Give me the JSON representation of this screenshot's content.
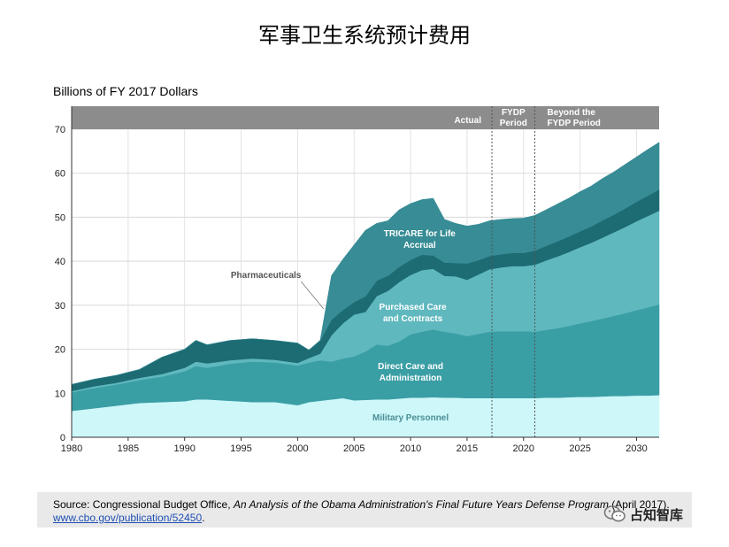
{
  "page": {
    "title": "军事卫生系统预计费用"
  },
  "source": {
    "prefix": "Source: Congressional Budget Office, ",
    "title": "An Analysis of the Obama Administration's Final Future Years Defense Program",
    "suffix": " (April 2017).",
    "url": "www.cbo.gov/publication/52450",
    "url_suffix": "."
  },
  "watermark": {
    "text": "占知智库",
    "icon": "wechat-icon"
  },
  "colors": {
    "military_personnel": "#cdf7f9",
    "direct_care": "#3a9ea5",
    "purchased_care": "#5fb8be",
    "pharmaceuticals": "#1d6b73",
    "tricare": "#378c95",
    "header_band": "#8c8c8c"
  },
  "chart_data": {
    "type": "area",
    "stacked": true,
    "ylabel": "Billions of FY 2017 Dollars",
    "xlim": [
      1980,
      2032
    ],
    "ylim": [
      0,
      70
    ],
    "xticks": [
      1980,
      1985,
      1990,
      1995,
      2000,
      2005,
      2010,
      2015,
      2020,
      2025,
      2030
    ],
    "yticks": [
      0,
      10,
      20,
      30,
      40,
      50,
      60,
      70
    ],
    "grid": true,
    "periods": [
      {
        "label": "Actual",
        "start": 1980,
        "end": 2017.2
      },
      {
        "label": "FYDP Period",
        "start": 2017.2,
        "end": 2021
      },
      {
        "label": "Beyond the FYDP Period",
        "start": 2021,
        "end": 2032
      }
    ],
    "x": [
      1980,
      1982,
      1984,
      1986,
      1988,
      1990,
      1991,
      1992,
      1994,
      1996,
      1998,
      2000,
      2001,
      2002,
      2003,
      2004,
      2005,
      2006,
      2007,
      2008,
      2009,
      2010,
      2011,
      2012,
      2013,
      2014,
      2015,
      2016,
      2017,
      2018,
      2019,
      2020,
      2021,
      2022,
      2023,
      2024,
      2025,
      2026,
      2027,
      2028,
      2029,
      2030,
      2031,
      2032
    ],
    "series": [
      {
        "name": "Military Personnel",
        "values": [
          6.0,
          6.6,
          7.2,
          7.8,
          8.0,
          8.2,
          8.6,
          8.6,
          8.3,
          8.0,
          8.0,
          7.3,
          8.0,
          8.3,
          8.6,
          8.9,
          8.4,
          8.5,
          8.6,
          8.6,
          8.8,
          9.0,
          9.0,
          9.1,
          9.0,
          9.0,
          8.9,
          8.9,
          8.9,
          8.9,
          8.9,
          8.9,
          8.9,
          9.0,
          9.0,
          9.1,
          9.2,
          9.2,
          9.3,
          9.4,
          9.4,
          9.5,
          9.5,
          9.6
        ]
      },
      {
        "name": "Direct Care and Administration",
        "values": [
          4.2,
          4.6,
          4.8,
          5.2,
          5.8,
          6.8,
          7.6,
          7.2,
          8.4,
          9.2,
          9.0,
          9.0,
          9.0,
          9.2,
          8.6,
          9.0,
          10.0,
          11.0,
          12.5,
          12.2,
          13.0,
          14.4,
          15.0,
          15.4,
          15.0,
          14.6,
          14.1,
          14.6,
          15.1,
          15.2,
          15.2,
          15.2,
          15.1,
          15.4,
          15.8,
          16.2,
          16.7,
          17.2,
          17.7,
          18.2,
          18.8,
          19.4,
          20.0,
          20.6
        ]
      },
      {
        "name": "Purchased Care and Contracts",
        "values": [
          0.3,
          0.4,
          0.4,
          0.5,
          0.6,
          0.8,
          1.0,
          1.0,
          0.8,
          0.7,
          0.6,
          0.6,
          1.0,
          1.5,
          6.0,
          8.0,
          9.5,
          9.0,
          11.0,
          12.5,
          13.5,
          13.5,
          14.0,
          13.8,
          12.7,
          13.0,
          12.8,
          13.5,
          14.2,
          14.5,
          14.8,
          14.8,
          15.2,
          15.8,
          16.3,
          16.8,
          17.3,
          17.8,
          18.4,
          19.0,
          19.6,
          20.2,
          20.8,
          21.3
        ]
      },
      {
        "name": "Pharmaceuticals",
        "values": [
          1.5,
          1.6,
          1.7,
          1.9,
          3.8,
          4.2,
          4.8,
          4.2,
          4.5,
          4.5,
          4.4,
          4.5,
          1.8,
          3.0,
          3.5,
          3.0,
          2.8,
          3.5,
          3.5,
          3.4,
          3.4,
          3.4,
          3.5,
          3.0,
          3.0,
          3.0,
          3.7,
          3.2,
          3.0,
          3.0,
          3.0,
          3.0,
          3.2,
          3.3,
          3.4,
          3.5,
          3.6,
          3.7,
          3.9,
          4.0,
          4.2,
          4.4,
          4.6,
          4.8
        ]
      },
      {
        "name": "TRICARE for Life Accrual",
        "values": [
          0,
          0,
          0,
          0,
          0,
          0,
          0,
          0,
          0,
          0,
          0,
          0,
          0,
          0,
          10.0,
          11.5,
          13.0,
          15.0,
          13.0,
          12.5,
          13.0,
          12.8,
          12.5,
          13.0,
          9.8,
          9.0,
          8.5,
          8.2,
          8.0,
          7.9,
          7.8,
          7.9,
          8.0,
          8.2,
          8.5,
          8.7,
          9.0,
          9.2,
          9.5,
          9.7,
          10.0,
          10.2,
          10.5,
          10.7
        ]
      }
    ],
    "labels": {
      "military_personnel": "Military Personnel",
      "direct_care_1": "Direct Care and",
      "direct_care_2": "Administration",
      "purchased_1": "Purchased Care",
      "purchased_2": "and Contracts",
      "pharmaceuticals": "Pharmaceuticals",
      "tricare_1": "TRICARE for Life",
      "tricare_2": "Accrual",
      "period_actual": "Actual",
      "period_fydp_1": "FYDP",
      "period_fydp_2": "Period",
      "period_beyond_1": "Beyond the",
      "period_beyond_2": "FYDP Period"
    }
  }
}
